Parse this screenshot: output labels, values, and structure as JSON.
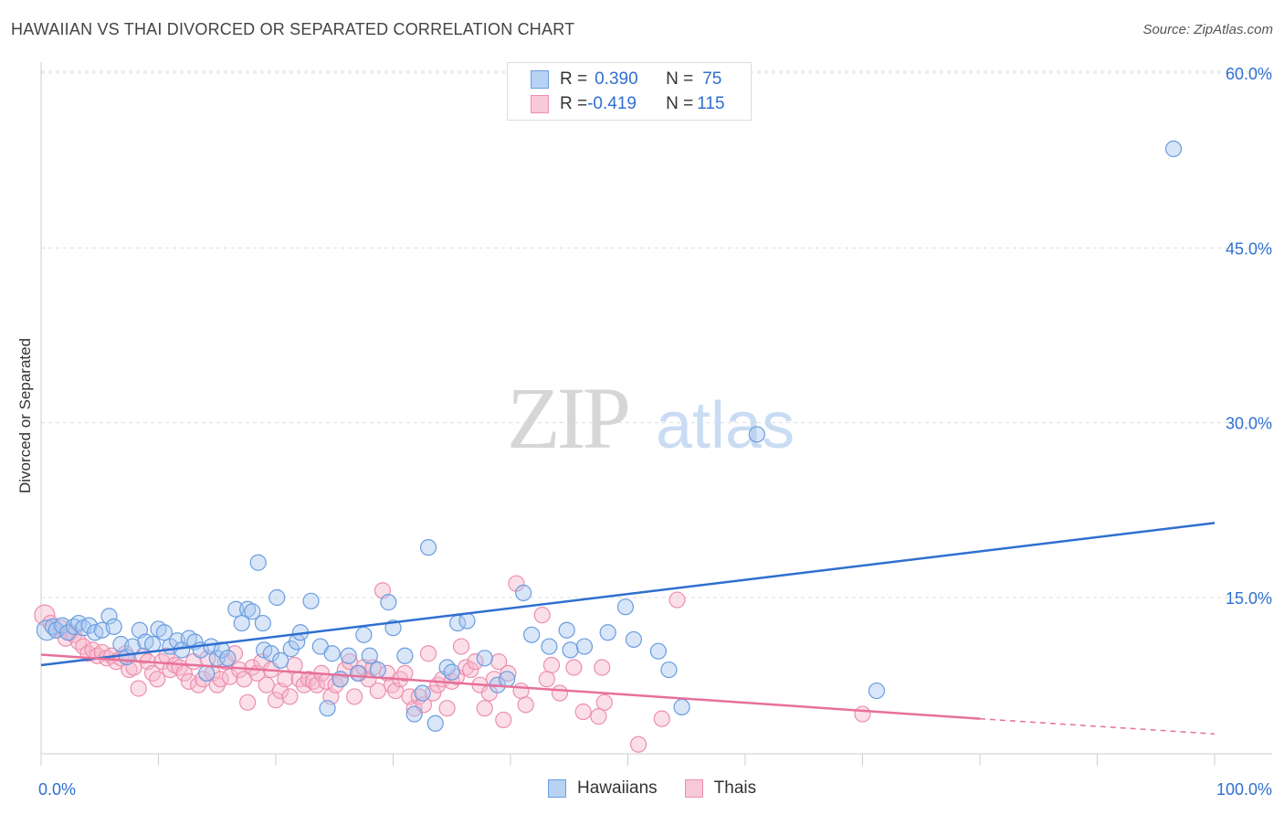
{
  "header": {
    "title": "HAWAIIAN VS THAI DIVORCED OR SEPARATED CORRELATION CHART",
    "source": "Source: ZipAtlas.com"
  },
  "legend": {
    "rows": [
      {
        "r_label": "R = ",
        "r_value": "0.390",
        "n_label": "N = ",
        "n_value": "75"
      },
      {
        "r_label": "R = ",
        "r_value": "-0.419",
        "n_label": "N = ",
        "n_value": "115"
      }
    ]
  },
  "bottom_legend": {
    "items": [
      "Hawaiians",
      "Thais"
    ]
  },
  "colors": {
    "hawaiians_fill": "#a9c8f0",
    "hawaiians_stroke": "#6a9de0",
    "hawaiians_line": "#2f6fd0",
    "thais_fill": "#f6b8cb",
    "thais_stroke": "#ec8fae",
    "thais_line": "#e8709a",
    "grid": "#dddddd",
    "axis_text": "#2f6fd0"
  },
  "watermark": {
    "zip": "ZIP",
    "atlas": "atlas"
  },
  "chart_data": {
    "type": "scatter",
    "title": "HAWAIIAN VS THAI DIVORCED OR SEPARATED CORRELATION CHART",
    "xlabel": "",
    "ylabel": "Divorced or Separated",
    "xlim": [
      0,
      100
    ],
    "ylim": [
      0,
      65
    ],
    "x_tick_labels": [
      "0.0%",
      "100.0%"
    ],
    "y_ticks": [
      15,
      30,
      45,
      60
    ],
    "y_tick_labels": [
      "15.0%",
      "30.0%",
      "45.0%",
      "60.0%"
    ],
    "grid": true,
    "legend_position": "top-center",
    "series": [
      {
        "name": "Hawaiians",
        "r": 0.39,
        "n": 75,
        "trend": {
          "x": [
            0,
            100
          ],
          "y": [
            9.2,
            21.4
          ]
        },
        "points": [
          [
            0.5,
            12.2
          ],
          [
            1.0,
            12.5
          ],
          [
            1.3,
            12.2
          ],
          [
            1.8,
            12.6
          ],
          [
            2.3,
            12.0
          ],
          [
            2.8,
            12.5
          ],
          [
            3.2,
            12.8
          ],
          [
            3.6,
            12.4
          ],
          [
            4.1,
            12.6
          ],
          [
            4.6,
            12.0
          ],
          [
            5.2,
            12.2
          ],
          [
            5.8,
            13.4
          ],
          [
            6.2,
            12.5
          ],
          [
            6.8,
            11.0
          ],
          [
            7.3,
            9.9
          ],
          [
            7.8,
            10.8
          ],
          [
            8.4,
            12.2
          ],
          [
            8.9,
            11.2
          ],
          [
            9.5,
            11.0
          ],
          [
            10.0,
            12.3
          ],
          [
            10.5,
            12.0
          ],
          [
            11.0,
            10.8
          ],
          [
            11.6,
            11.3
          ],
          [
            12.0,
            10.5
          ],
          [
            12.6,
            11.5
          ],
          [
            13.1,
            11.2
          ],
          [
            13.6,
            10.5
          ],
          [
            14.1,
            8.5
          ],
          [
            14.5,
            10.8
          ],
          [
            15.0,
            9.8
          ],
          [
            15.4,
            10.5
          ],
          [
            15.9,
            9.8
          ],
          [
            16.6,
            14.0
          ],
          [
            17.1,
            12.8
          ],
          [
            17.6,
            14.0
          ],
          [
            18.0,
            13.8
          ],
          [
            18.5,
            18.0
          ],
          [
            18.9,
            12.8
          ],
          [
            19.0,
            10.5
          ],
          [
            19.6,
            10.2
          ],
          [
            20.1,
            15.0
          ],
          [
            20.4,
            9.6
          ],
          [
            21.3,
            10.6
          ],
          [
            21.8,
            11.2
          ],
          [
            22.1,
            12.0
          ],
          [
            23.0,
            14.7
          ],
          [
            23.8,
            10.8
          ],
          [
            24.4,
            5.5
          ],
          [
            24.8,
            10.2
          ],
          [
            25.5,
            8.0
          ],
          [
            26.2,
            10.0
          ],
          [
            27.0,
            8.5
          ],
          [
            27.5,
            11.8
          ],
          [
            28.0,
            10.0
          ],
          [
            28.7,
            8.8
          ],
          [
            29.6,
            14.6
          ],
          [
            30.0,
            12.4
          ],
          [
            31.0,
            10.0
          ],
          [
            31.8,
            5.0
          ],
          [
            32.5,
            6.8
          ],
          [
            33.0,
            19.3
          ],
          [
            33.6,
            4.2
          ],
          [
            34.6,
            9.0
          ],
          [
            35.5,
            12.8
          ],
          [
            36.3,
            13.0
          ],
          [
            35.0,
            8.6
          ],
          [
            37.8,
            9.8
          ],
          [
            38.9,
            7.5
          ],
          [
            39.7,
            8.0
          ],
          [
            41.1,
            15.4
          ],
          [
            41.8,
            11.8
          ],
          [
            43.3,
            10.8
          ],
          [
            44.8,
            12.2
          ],
          [
            45.1,
            10.5
          ],
          [
            46.3,
            10.8
          ],
          [
            48.3,
            12.0
          ],
          [
            49.8,
            14.2
          ],
          [
            50.5,
            11.4
          ],
          [
            52.6,
            10.4
          ],
          [
            53.5,
            8.8
          ],
          [
            54.6,
            5.6
          ],
          [
            61.0,
            29.0
          ],
          [
            71.2,
            7.0
          ],
          [
            96.5,
            53.5
          ]
        ]
      },
      {
        "name": "Thais",
        "r": -0.419,
        "n": 115,
        "trend": {
          "x": [
            0,
            80
          ],
          "y": [
            10.1,
            4.6
          ]
        },
        "trend_dashed": {
          "x": [
            80,
            100
          ],
          "y": [
            4.6,
            3.3
          ]
        },
        "points": [
          [
            0.3,
            13.5
          ],
          [
            0.8,
            12.8
          ],
          [
            1.3,
            12.2
          ],
          [
            1.7,
            12.4
          ],
          [
            2.1,
            11.5
          ],
          [
            2.5,
            12.0
          ],
          [
            2.8,
            11.8
          ],
          [
            3.2,
            11.2
          ],
          [
            3.6,
            10.8
          ],
          [
            4.0,
            10.2
          ],
          [
            4.4,
            10.5
          ],
          [
            4.8,
            10.0
          ],
          [
            5.2,
            10.3
          ],
          [
            5.6,
            9.8
          ],
          [
            6.0,
            10.0
          ],
          [
            6.4,
            9.5
          ],
          [
            6.8,
            9.8
          ],
          [
            7.2,
            10.2
          ],
          [
            7.5,
            8.8
          ],
          [
            7.9,
            9.0
          ],
          [
            8.3,
            7.2
          ],
          [
            8.7,
            10.0
          ],
          [
            9.1,
            9.5
          ],
          [
            9.5,
            8.5
          ],
          [
            9.9,
            8.0
          ],
          [
            10.3,
            9.5
          ],
          [
            10.7,
            10.0
          ],
          [
            11.0,
            8.8
          ],
          [
            11.4,
            9.2
          ],
          [
            11.8,
            9.0
          ],
          [
            12.2,
            8.5
          ],
          [
            12.6,
            7.8
          ],
          [
            13.0,
            9.5
          ],
          [
            13.4,
            7.5
          ],
          [
            13.8,
            8.0
          ],
          [
            14.2,
            9.8
          ],
          [
            14.6,
            8.5
          ],
          [
            15.0,
            7.5
          ],
          [
            15.3,
            8.0
          ],
          [
            15.7,
            9.5
          ],
          [
            16.1,
            8.2
          ],
          [
            16.5,
            10.2
          ],
          [
            16.9,
            8.8
          ],
          [
            17.3,
            8.0
          ],
          [
            17.6,
            6.0
          ],
          [
            18.0,
            9.0
          ],
          [
            18.4,
            8.5
          ],
          [
            18.8,
            9.5
          ],
          [
            19.2,
            7.5
          ],
          [
            19.6,
            8.8
          ],
          [
            20.0,
            6.2
          ],
          [
            20.4,
            7.0
          ],
          [
            20.8,
            8.0
          ],
          [
            21.2,
            6.5
          ],
          [
            21.6,
            9.2
          ],
          [
            22.0,
            8.0
          ],
          [
            22.4,
            7.5
          ],
          [
            22.8,
            8.0
          ],
          [
            23.2,
            7.8
          ],
          [
            23.5,
            7.5
          ],
          [
            23.9,
            8.5
          ],
          [
            24.3,
            7.8
          ],
          [
            24.7,
            6.5
          ],
          [
            25.1,
            7.5
          ],
          [
            25.5,
            8.0
          ],
          [
            25.9,
            8.8
          ],
          [
            26.3,
            9.5
          ],
          [
            26.7,
            6.5
          ],
          [
            27.1,
            8.5
          ],
          [
            27.5,
            9.0
          ],
          [
            27.9,
            8.0
          ],
          [
            28.3,
            9.0
          ],
          [
            28.7,
            7.0
          ],
          [
            29.1,
            15.6
          ],
          [
            29.5,
            8.5
          ],
          [
            29.9,
            7.5
          ],
          [
            30.2,
            7.0
          ],
          [
            30.6,
            8.0
          ],
          [
            31.0,
            8.5
          ],
          [
            31.4,
            6.5
          ],
          [
            31.8,
            5.5
          ],
          [
            32.2,
            6.5
          ],
          [
            32.6,
            5.8
          ],
          [
            33.0,
            10.2
          ],
          [
            33.4,
            6.8
          ],
          [
            33.8,
            7.5
          ],
          [
            34.2,
            8.0
          ],
          [
            34.6,
            5.5
          ],
          [
            35.0,
            7.8
          ],
          [
            35.4,
            8.2
          ],
          [
            35.8,
            10.8
          ],
          [
            36.2,
            9.0
          ],
          [
            36.6,
            8.8
          ],
          [
            37.0,
            9.5
          ],
          [
            37.4,
            7.5
          ],
          [
            37.8,
            5.5
          ],
          [
            38.2,
            6.8
          ],
          [
            38.6,
            8.0
          ],
          [
            39.0,
            9.5
          ],
          [
            39.4,
            4.5
          ],
          [
            39.8,
            8.5
          ],
          [
            40.5,
            16.2
          ],
          [
            40.9,
            7.0
          ],
          [
            41.3,
            5.8
          ],
          [
            42.7,
            13.5
          ],
          [
            43.5,
            9.2
          ],
          [
            43.1,
            8.0
          ],
          [
            45.4,
            9.0
          ],
          [
            44.2,
            6.8
          ],
          [
            46.2,
            5.2
          ],
          [
            47.8,
            9.0
          ],
          [
            48.0,
            6.0
          ],
          [
            47.5,
            4.8
          ],
          [
            50.9,
            2.4
          ],
          [
            52.9,
            4.6
          ],
          [
            54.2,
            14.8
          ],
          [
            70.0,
            5.0
          ]
        ]
      }
    ]
  }
}
